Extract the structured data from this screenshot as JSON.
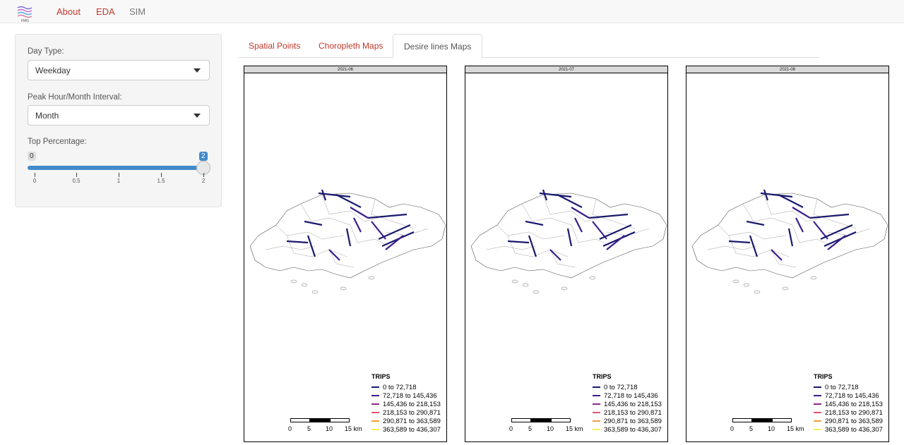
{
  "navbar": {
    "logo_icon": "waves-logo-icon",
    "items": [
      {
        "label": "About"
      },
      {
        "label": "EDA"
      },
      {
        "label": "SIM"
      }
    ]
  },
  "sidebar": {
    "day_type_label": "Day Type:",
    "day_type_value": "Weekday",
    "interval_label": "Peak Hour/Month Interval:",
    "interval_value": "Month",
    "top_pct_label": "Top Percentage:",
    "slider": {
      "min_badge": "0",
      "max_badge": "2",
      "value_fraction": 1.0,
      "tick_labels": [
        "0",
        "0.5",
        "1",
        "1.5",
        "2"
      ]
    }
  },
  "tabs": [
    {
      "label": "Spatial Points",
      "active": false
    },
    {
      "label": "Choropleth Maps",
      "active": false
    },
    {
      "label": "Desire lines Maps",
      "active": true
    }
  ],
  "maps": [
    {
      "title": "2021-06"
    },
    {
      "title": "2021-07"
    },
    {
      "title": "2021-08"
    }
  ],
  "legend": {
    "title": "TRIPS",
    "items": [
      {
        "label": "0 to 72,718",
        "color": "#1a1a6e"
      },
      {
        "label": "72,718 to 145,436",
        "color": "#3b1e8a"
      },
      {
        "label": "145,436 to 218,153",
        "color": "#8a2b8a"
      },
      {
        "label": "218,153 to 290,871",
        "color": "#d9576b"
      },
      {
        "label": "290,871 to 363,589",
        "color": "#f29e3d"
      },
      {
        "label": "363,589 to 436,307",
        "color": "#f5ef5a"
      }
    ]
  },
  "scalebar": {
    "labels": [
      "0",
      "5",
      "10",
      "15 km"
    ]
  }
}
